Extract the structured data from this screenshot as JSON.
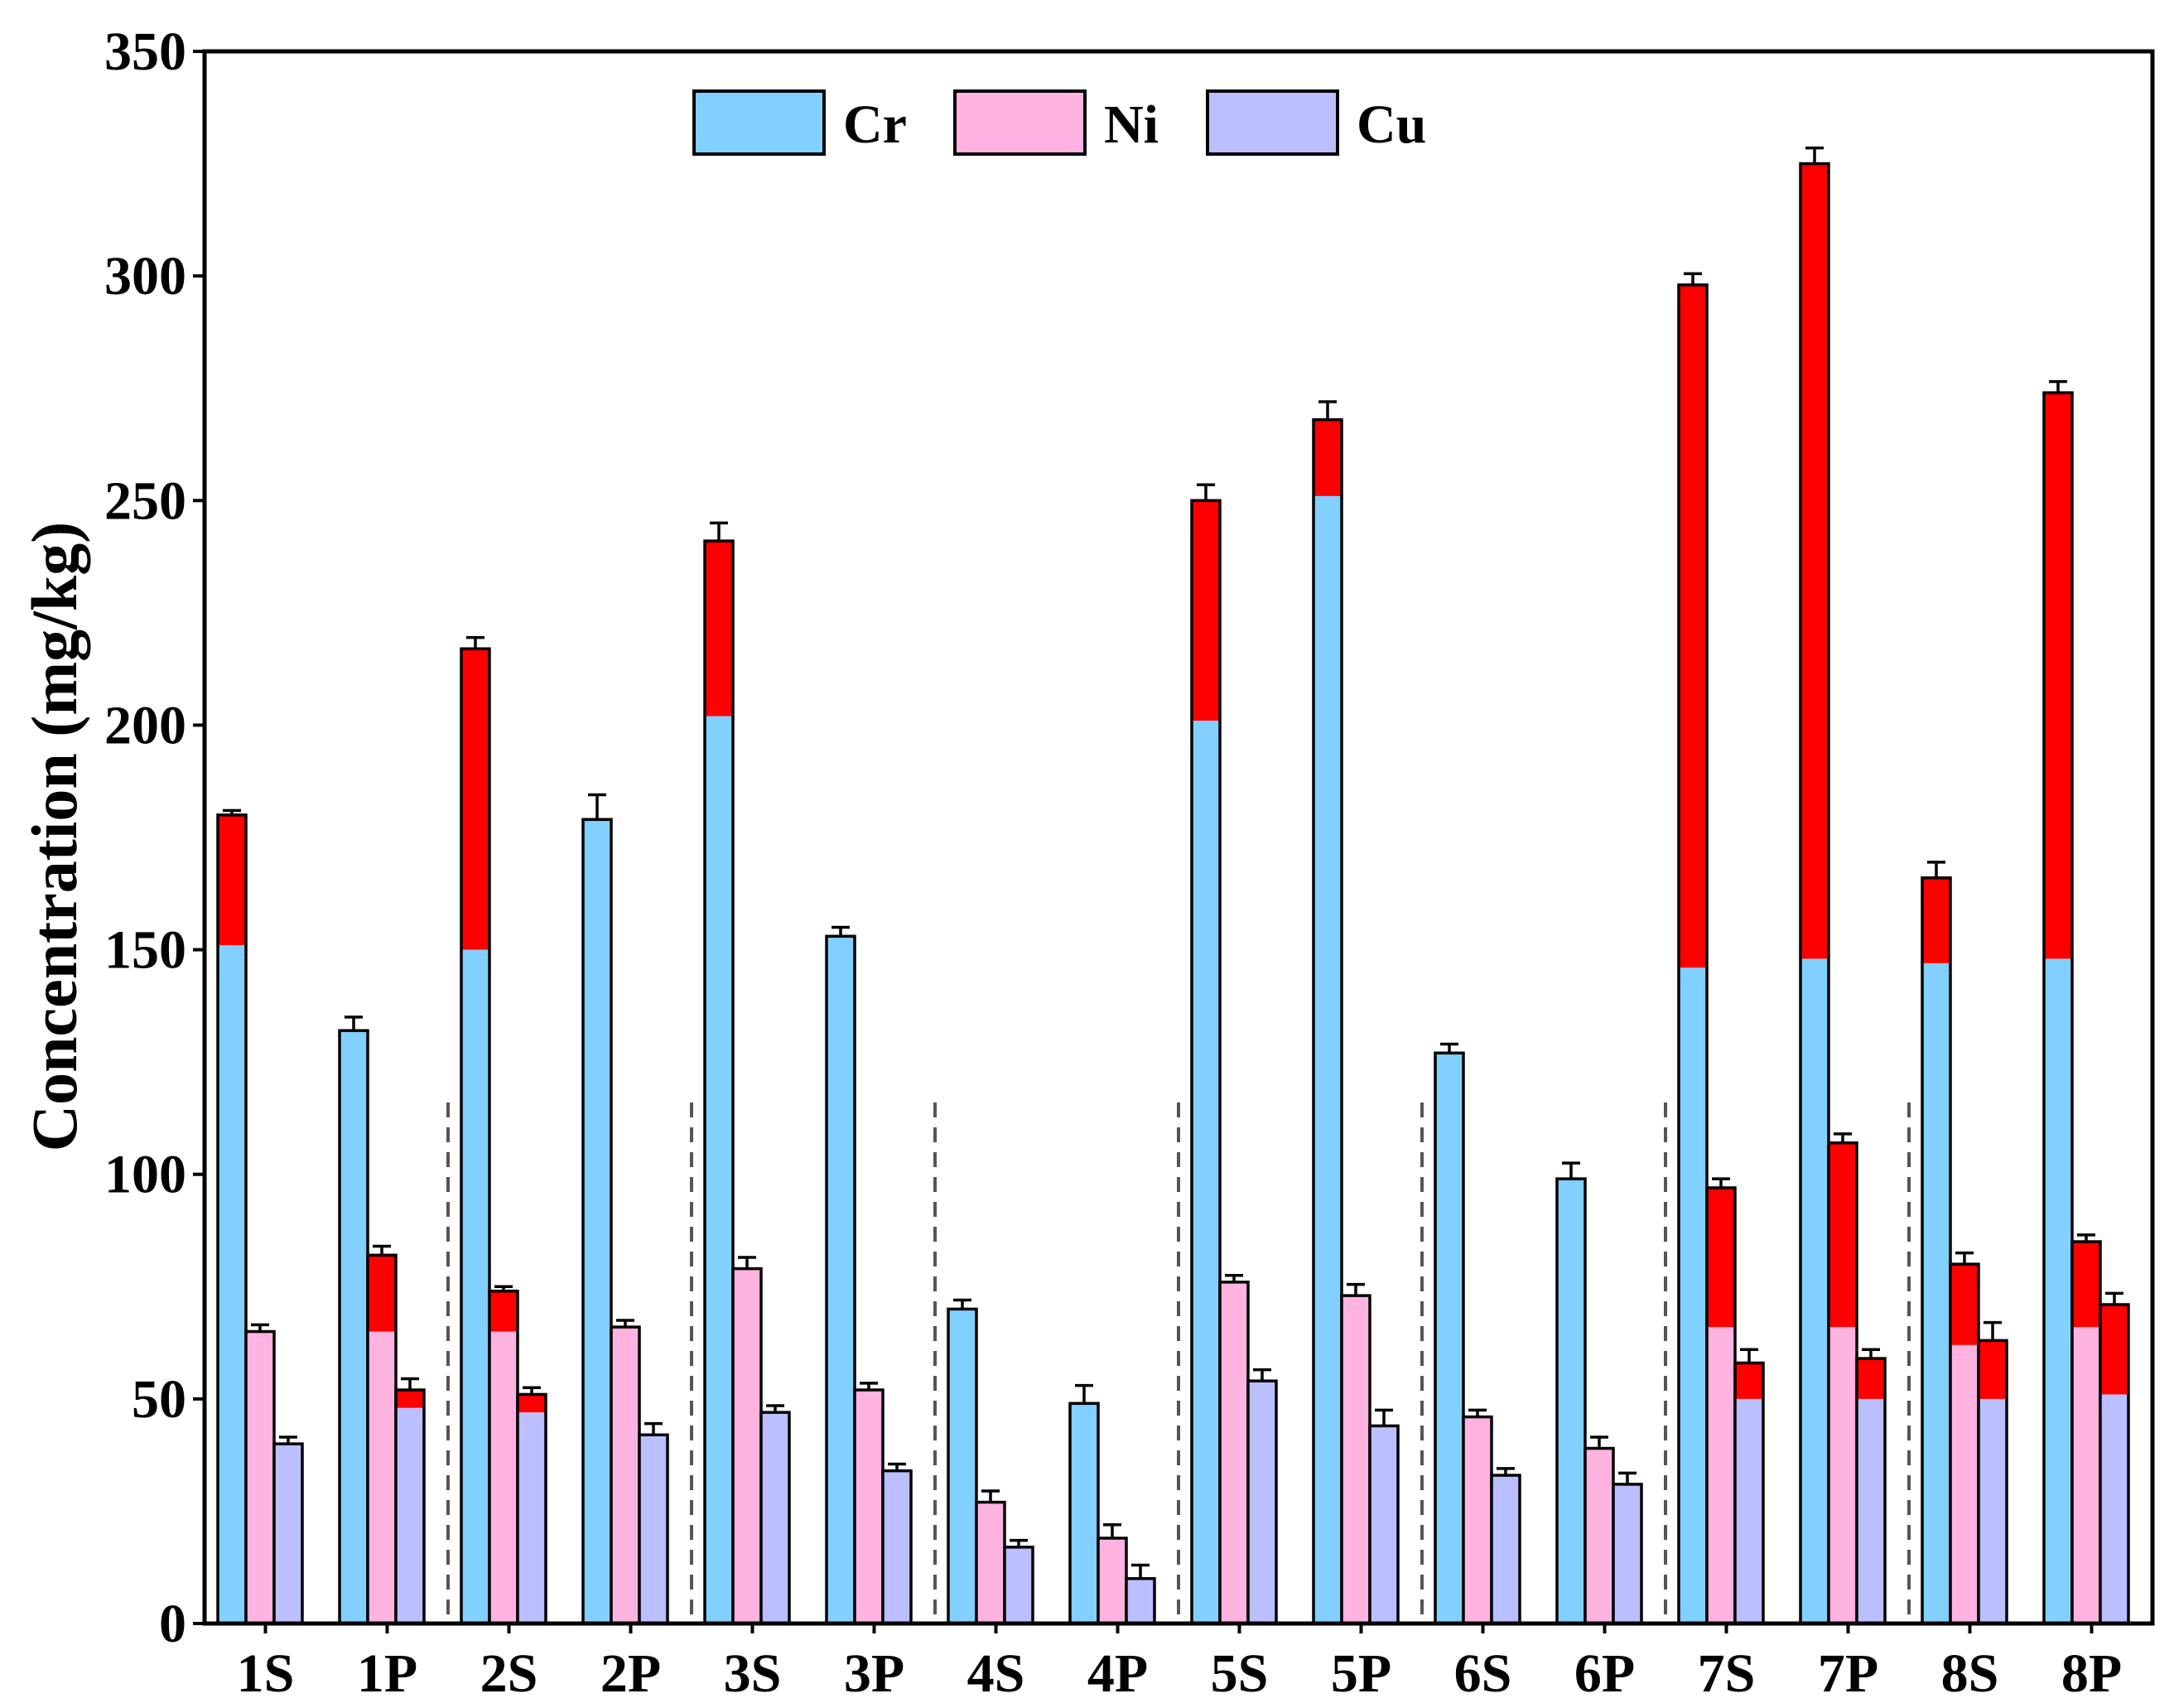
{
  "chart_data": {
    "type": "bar",
    "title": "",
    "xlabel": "",
    "ylabel": "Concentration (mg/kg)",
    "ylim": [
      0,
      350
    ],
    "yticks": [
      0,
      50,
      100,
      150,
      200,
      250,
      300,
      350
    ],
    "grid": false,
    "legend_position": "top-center",
    "categories": [
      "1S",
      "1P",
      "2S",
      "2P",
      "3S",
      "3P",
      "4S",
      "4P",
      "5S",
      "5P",
      "6S",
      "6P",
      "7S",
      "7P",
      "8S",
      "8P"
    ],
    "group_separators_after": [
      "1P",
      "2P",
      "3P",
      "4P",
      "5P",
      "6P",
      "7P"
    ],
    "series": [
      {
        "name": "Cr",
        "color": "#82D0FF",
        "values": [
          180,
          132,
          217,
          179,
          241,
          153,
          70,
          49,
          250,
          268,
          127,
          99,
          298,
          325,
          166,
          274
        ],
        "base_values": [
          151,
          132,
          150,
          179,
          202,
          153,
          70,
          49,
          201,
          251,
          127,
          99,
          146,
          148,
          147,
          148
        ],
        "errors": [
          1,
          3,
          2.5,
          5.5,
          4,
          2,
          2,
          4,
          3.5,
          4,
          2,
          3.5,
          2.5,
          3.5,
          3.5,
          2.5
        ]
      },
      {
        "name": "Ni",
        "color": "#FFB3E0",
        "values": [
          65,
          82,
          74,
          66,
          79,
          52,
          27,
          19,
          76,
          73,
          46,
          39,
          97,
          107,
          80,
          85
        ],
        "base_values": [
          65,
          65,
          65,
          66,
          79,
          52,
          27,
          19,
          76,
          73,
          46,
          39,
          66,
          66,
          62,
          66
        ],
        "errors": [
          1.5,
          2,
          1,
          1.5,
          2.5,
          1.5,
          2.5,
          3,
          1.5,
          2.5,
          1.5,
          2.5,
          2,
          2,
          2.5,
          1.5
        ]
      },
      {
        "name": "Cu",
        "color": "#BBBFFF",
        "values": [
          40,
          52,
          51,
          42,
          47,
          34,
          17,
          10,
          54,
          44,
          33,
          31,
          58,
          59,
          63,
          71
        ],
        "base_values": [
          40,
          48,
          47,
          42,
          47,
          34,
          17,
          10,
          54,
          44,
          33,
          31,
          50,
          50,
          50,
          51
        ],
        "errors": [
          1.5,
          2.5,
          1.5,
          2.5,
          1.5,
          1.5,
          1.5,
          3,
          2.5,
          3.5,
          1.5,
          2.5,
          3,
          2,
          4,
          2.5
        ]
      }
    ],
    "highlight_color": "#FF0000"
  }
}
